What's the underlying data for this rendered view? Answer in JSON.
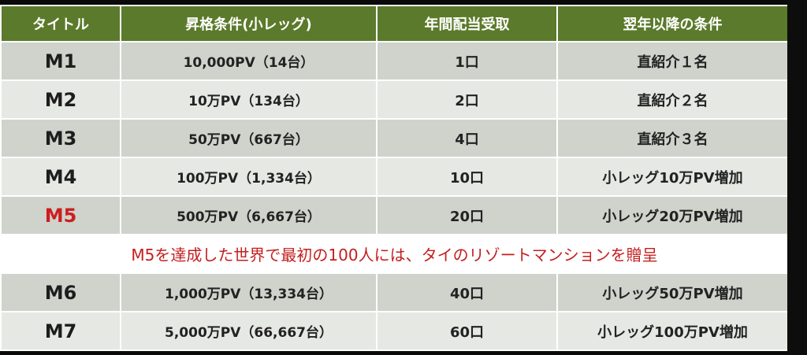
{
  "table": {
    "headers": [
      "タイトル",
      "昇格条件(小レッグ)",
      "年間配当受取",
      "翌年以降の条件"
    ],
    "rows": [
      {
        "title": "M1",
        "condition": "10,000PV（14台）",
        "payout": "1口",
        "next": "直紹介１名",
        "highlight": false
      },
      {
        "title": "M2",
        "condition": "10万PV（134台）",
        "payout": "2口",
        "next": "直紹介２名",
        "highlight": false
      },
      {
        "title": "M3",
        "condition": "50万PV（667台）",
        "payout": "4口",
        "next": "直紹介３名",
        "highlight": false
      },
      {
        "title": "M4",
        "condition": "100万PV（1,334台）",
        "payout": "10口",
        "next": "小レッグ10万PV増加",
        "highlight": false
      },
      {
        "title": "M5",
        "condition": "500万PV（6,667台）",
        "payout": "20口",
        "next": "小レッグ20万PV増加",
        "highlight": true
      }
    ],
    "note": "M5を達成した世界で最初の100人には、タイのリゾートマンションを贈呈",
    "rows_after": [
      {
        "title": "M6",
        "condition": "1,000万PV（13,334台）",
        "payout": "40口",
        "next": "小レッグ50万PV増加",
        "highlight": false
      },
      {
        "title": "M7",
        "condition": "5,000万PV（66,667台）",
        "payout": "60口",
        "next": "小レッグ100万PV増加",
        "highlight": false
      }
    ]
  },
  "colors": {
    "header_bg": "#5b7a2b",
    "row_dark": "#cfd3cc",
    "row_light": "#e6e8e3",
    "highlight_text": "#cc1e1e",
    "note_text": "#c41e1e"
  }
}
